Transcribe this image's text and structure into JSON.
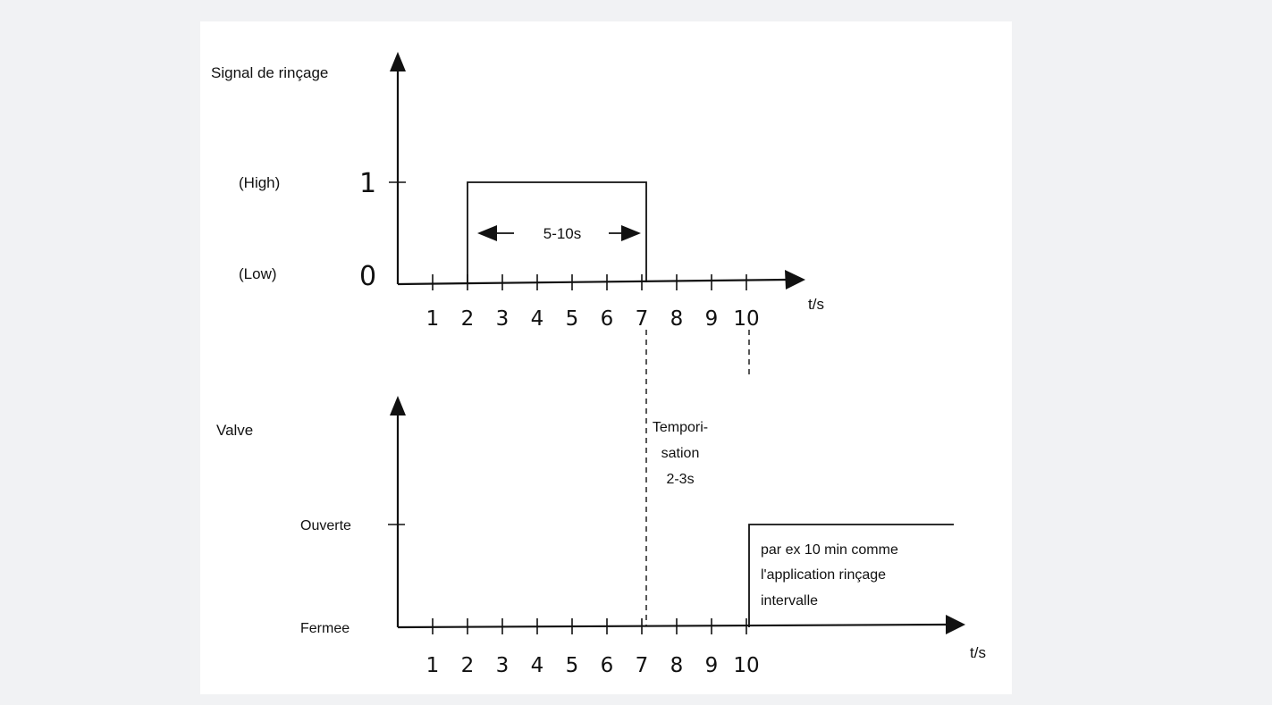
{
  "top": {
    "y_title": "Signal de rinçage",
    "level_high_label": "(High)",
    "level_high_value": "1",
    "level_low_label": "(Low)",
    "level_low_value": "0",
    "duration_label": "5-10s",
    "x_unit": "t/s",
    "ticks": [
      "1",
      "2",
      "3",
      "4",
      "5",
      "6",
      "7",
      "8",
      "9",
      "10"
    ]
  },
  "bottom": {
    "y_title": "Valve",
    "level_open": "Ouverte",
    "level_closed": "Fermee",
    "delay_lines": [
      "Tempori-",
      "sation",
      "2-3s"
    ],
    "note_lines": [
      "par ex 10 min comme",
      "l'application rinçage",
      "intervalle"
    ],
    "x_unit": "t/s",
    "ticks": [
      "1",
      "2",
      "3",
      "4",
      "5",
      "6",
      "7",
      "8",
      "9",
      "10"
    ]
  }
}
